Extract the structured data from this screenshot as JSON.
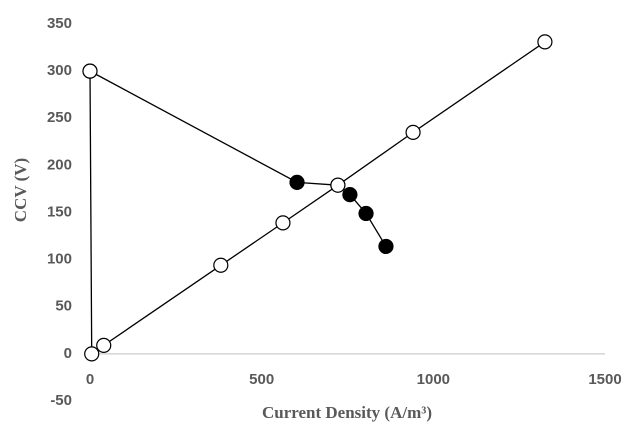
{
  "chart_data": {
    "type": "scatter",
    "x_label": "Current Density (A/m³)",
    "y_label": "CCV (V)",
    "xlim": [
      0,
      1500
    ],
    "xticks": [
      0,
      500,
      1000,
      1500
    ],
    "ylim": [
      -50,
      350
    ],
    "yticks": [
      -50,
      0,
      50,
      100,
      150,
      200,
      250,
      300,
      350
    ],
    "grid": false,
    "series": [
      {
        "color": "#000000",
        "marker": "filled",
        "x": [
          0,
          603,
          722,
          757,
          804,
          862
        ],
        "values": [
          300,
          182,
          179,
          169,
          149,
          114
        ]
      },
      {
        "color": "#000000",
        "marker": "open",
        "x": [
          0,
          5,
          40,
          381,
          562,
          722,
          941,
          1325
        ],
        "values": [
          300,
          0,
          9,
          94,
          139,
          179,
          235,
          331
        ]
      }
    ]
  }
}
